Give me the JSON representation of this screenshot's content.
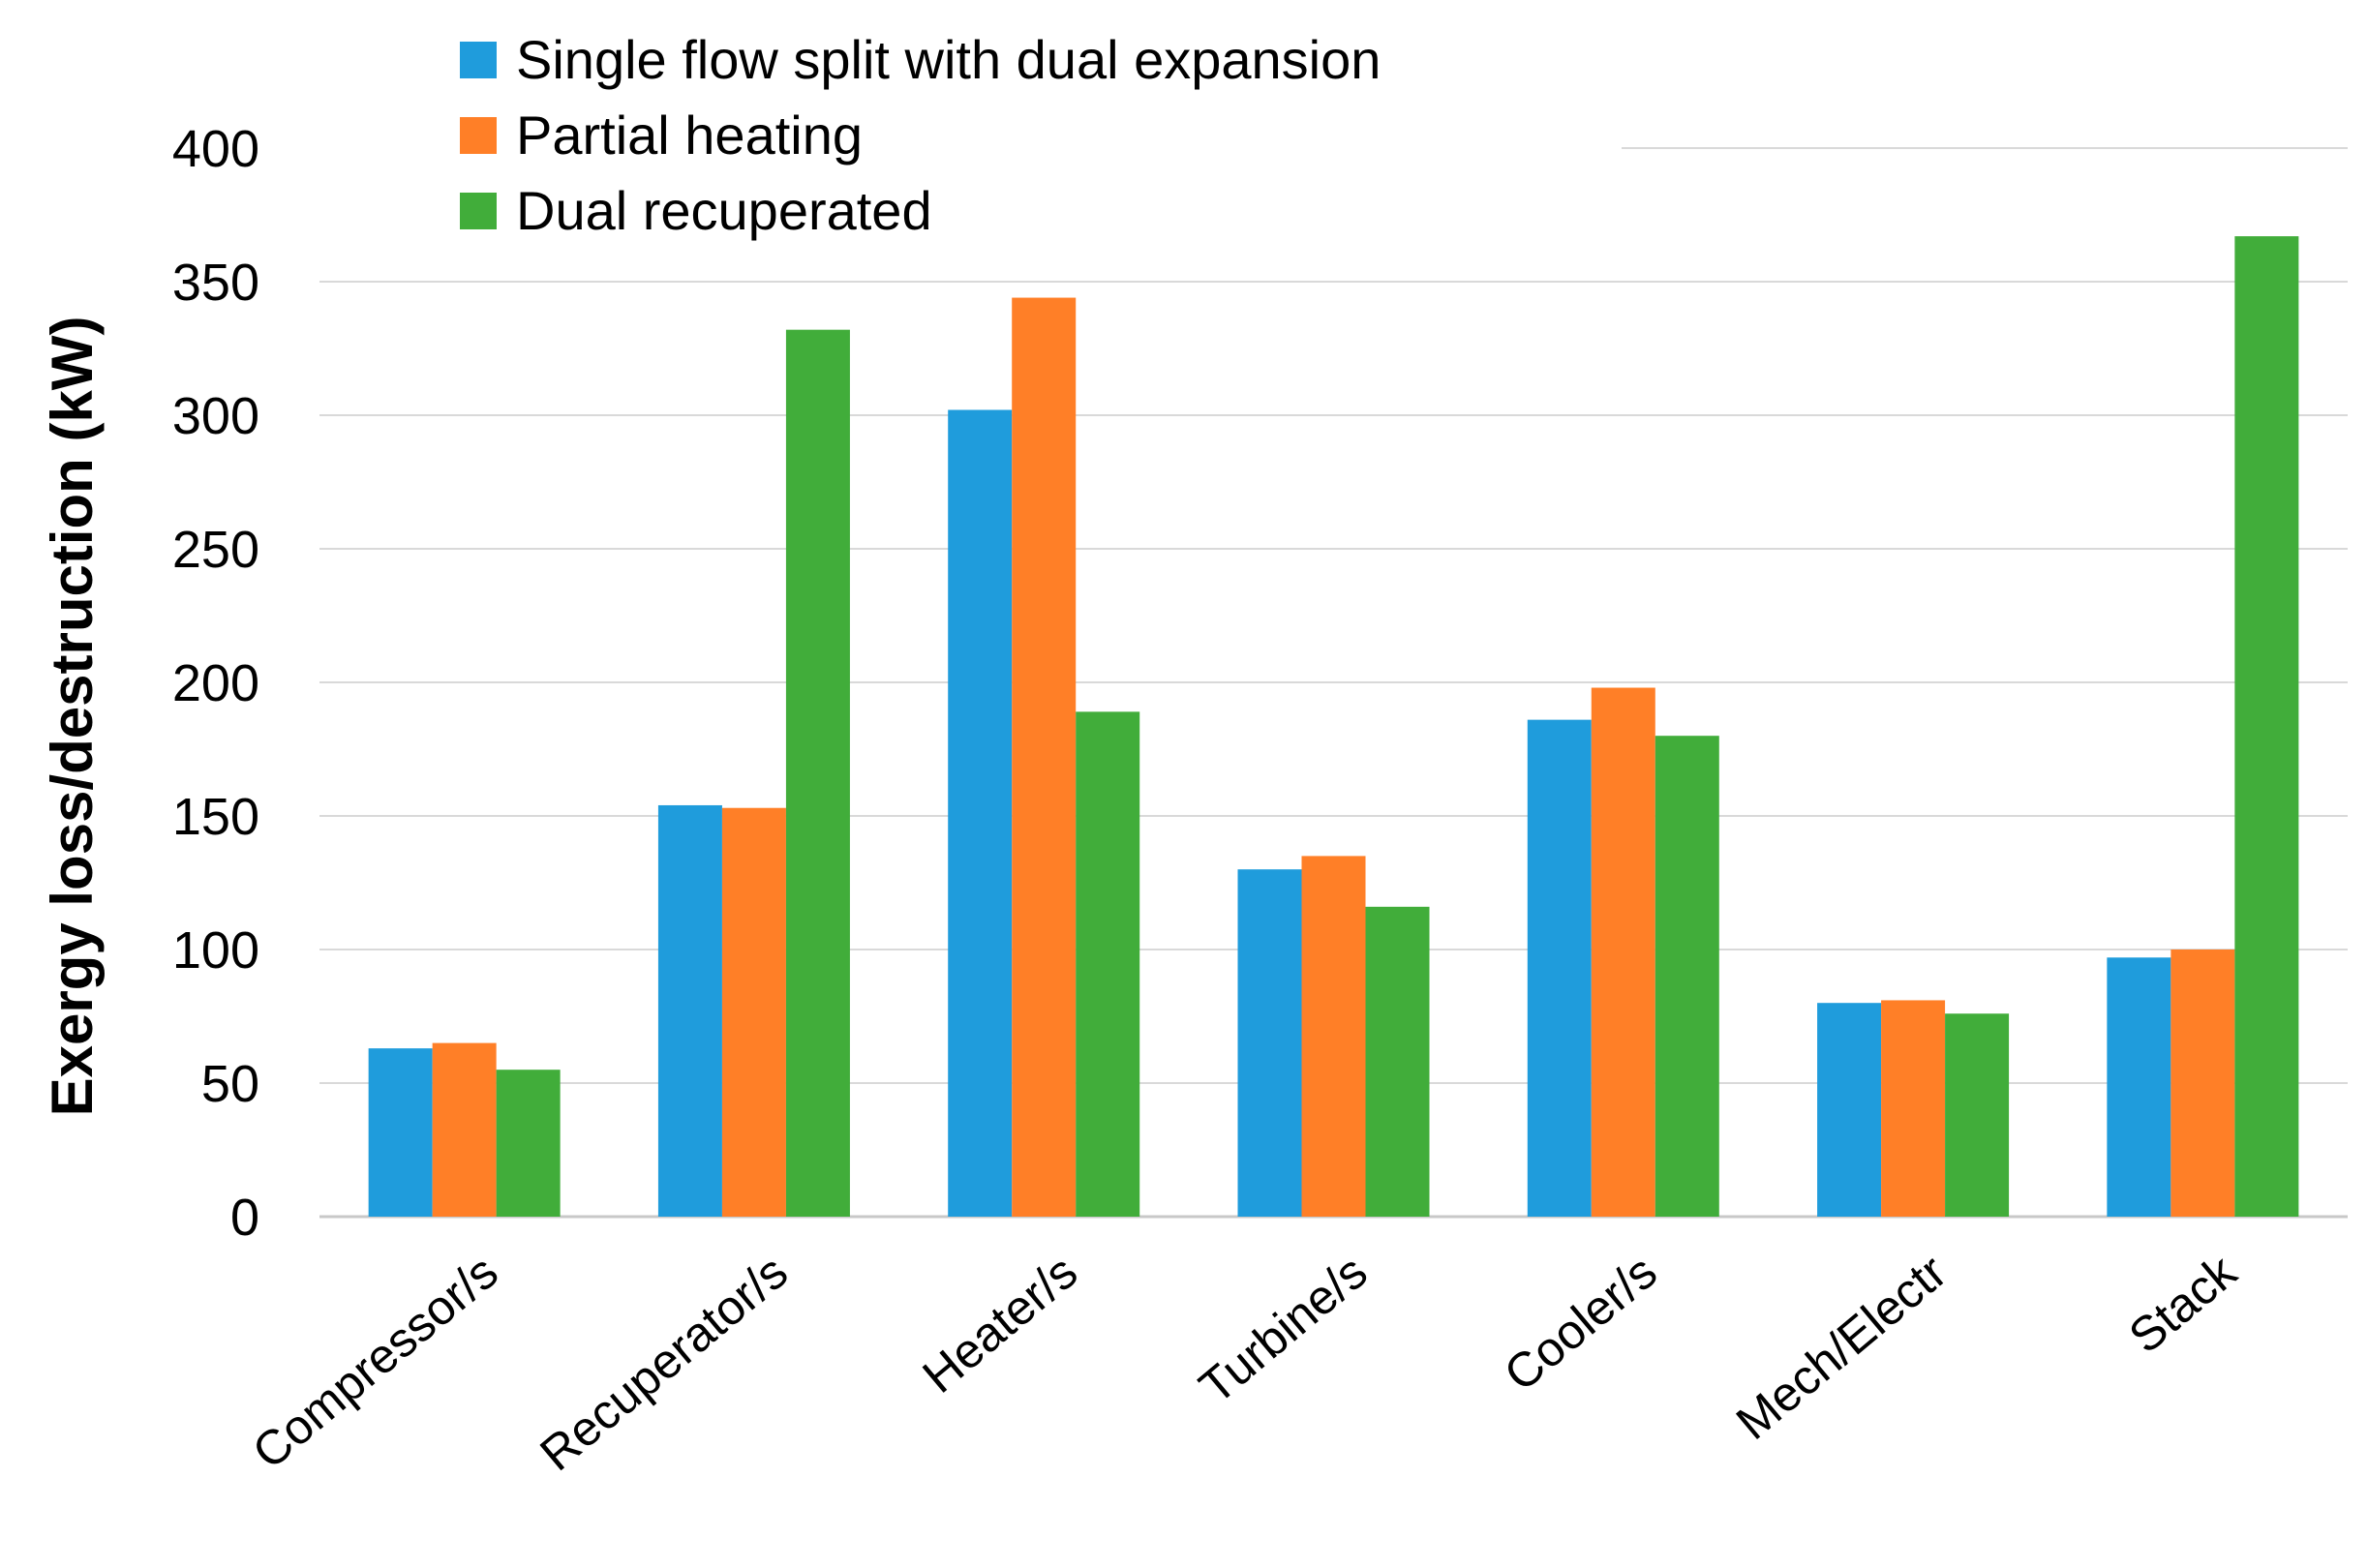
{
  "chart_data": {
    "type": "bar",
    "title": "",
    "xlabel": "",
    "ylabel": "Exergy loss/destruction (kW)",
    "ylim": [
      0,
      400
    ],
    "yticks": [
      0,
      50,
      100,
      150,
      200,
      250,
      300,
      350,
      400
    ],
    "grid": true,
    "legend_position": "top-left",
    "categories": [
      "Compressor/s",
      "Recuperator/s",
      "Heater/s",
      "Turbine/s",
      "Cooler/s",
      "Mech/Electr",
      "Stack"
    ],
    "series": [
      {
        "name": "Single flow split with dual expansion",
        "color": "#1f9cdc",
        "values": [
          63,
          154,
          302,
          130,
          186,
          80,
          97
        ]
      },
      {
        "name": "Partial heating",
        "color": "#ff7f27",
        "values": [
          65,
          153,
          344,
          135,
          198,
          81,
          100
        ]
      },
      {
        "name": "Dual recuperated",
        "color": "#41ad3a",
        "values": [
          55,
          332,
          189,
          116,
          180,
          76,
          367
        ]
      }
    ]
  }
}
